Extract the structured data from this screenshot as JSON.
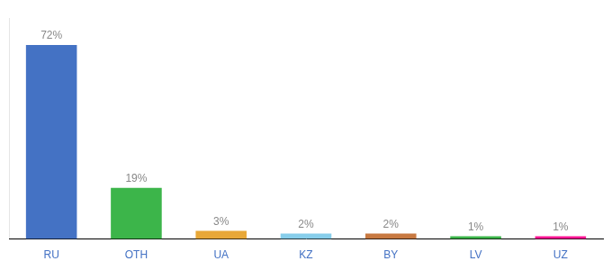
{
  "chart_data": {
    "type": "bar",
    "categories": [
      "RU",
      "OTH",
      "UA",
      "KZ",
      "BY",
      "LV",
      "UZ"
    ],
    "values": [
      72,
      19,
      3,
      2,
      2,
      1,
      1
    ],
    "value_labels": [
      "72%",
      "19%",
      "3%",
      "2%",
      "2%",
      "1%",
      "1%"
    ],
    "data_labels": true,
    "colors": [
      "#4472c4",
      "#3cb54a",
      "#e8a838",
      "#87ceeb",
      "#c87941",
      "#3cb54a",
      "#ff1493"
    ],
    "ylim": [
      0,
      82
    ],
    "tick_labels": "x",
    "grid": false
  }
}
